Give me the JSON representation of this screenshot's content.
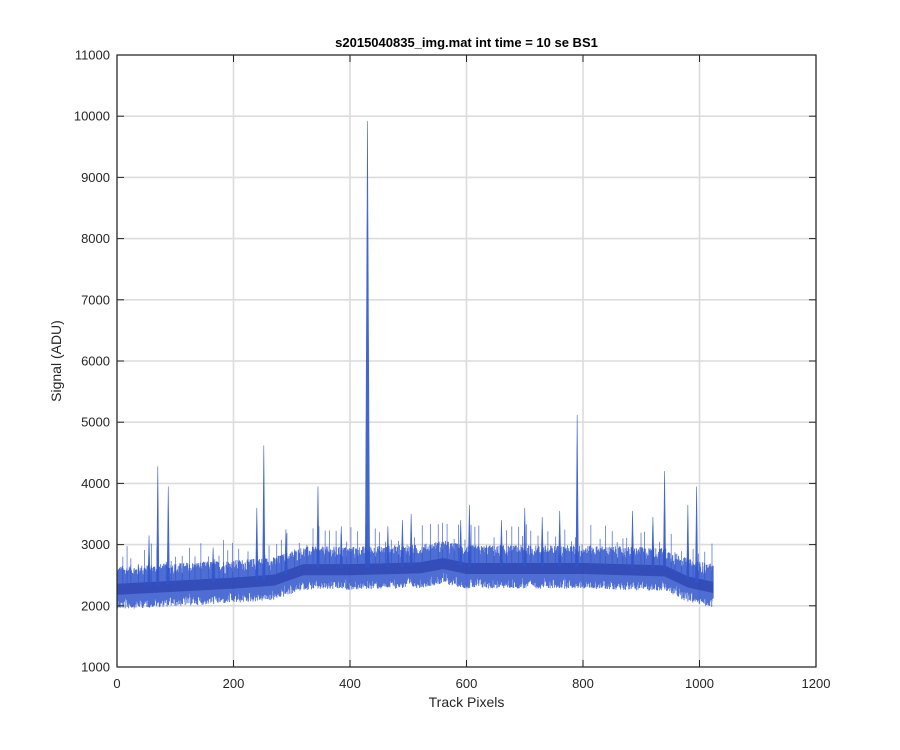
{
  "chart_data": {
    "type": "line",
    "title": "s2015040835_img.mat int time = 10 se   BS1",
    "xlabel": "Track Pixels",
    "ylabel": "Signal (ADU)",
    "xlim": [
      0,
      1200
    ],
    "ylim": [
      1000,
      11000
    ],
    "x_ticks": [
      0,
      200,
      400,
      600,
      800,
      1000,
      1200
    ],
    "y_ticks": [
      1000,
      2000,
      3000,
      4000,
      5000,
      6000,
      7000,
      8000,
      9000,
      10000,
      11000
    ],
    "grid": true,
    "n_pixels": 1024,
    "series_color": "#2f55cc",
    "baseline_profile": [
      {
        "x": 0,
        "y": 2300
      },
      {
        "x": 100,
        "y": 2350
      },
      {
        "x": 200,
        "y": 2400
      },
      {
        "x": 270,
        "y": 2450
      },
      {
        "x": 320,
        "y": 2620
      },
      {
        "x": 400,
        "y": 2620
      },
      {
        "x": 520,
        "y": 2650
      },
      {
        "x": 560,
        "y": 2720
      },
      {
        "x": 600,
        "y": 2640
      },
      {
        "x": 800,
        "y": 2640
      },
      {
        "x": 940,
        "y": 2600
      },
      {
        "x": 980,
        "y": 2420
      },
      {
        "x": 1024,
        "y": 2330
      }
    ],
    "spikes": [
      {
        "x": 70,
        "y": 4280
      },
      {
        "x": 88,
        "y": 3950
      },
      {
        "x": 55,
        "y": 3150
      },
      {
        "x": 165,
        "y": 2950
      },
      {
        "x": 240,
        "y": 3600
      },
      {
        "x": 252,
        "y": 4620
      },
      {
        "x": 290,
        "y": 3250
      },
      {
        "x": 345,
        "y": 3950
      },
      {
        "x": 385,
        "y": 3300
      },
      {
        "x": 430,
        "y": 9920
      },
      {
        "x": 465,
        "y": 3300
      },
      {
        "x": 490,
        "y": 3400
      },
      {
        "x": 505,
        "y": 3500
      },
      {
        "x": 590,
        "y": 3400
      },
      {
        "x": 605,
        "y": 3650
      },
      {
        "x": 660,
        "y": 3400
      },
      {
        "x": 700,
        "y": 3600
      },
      {
        "x": 730,
        "y": 3450
      },
      {
        "x": 760,
        "y": 3550
      },
      {
        "x": 790,
        "y": 5120
      },
      {
        "x": 885,
        "y": 3550
      },
      {
        "x": 920,
        "y": 3450
      },
      {
        "x": 940,
        "y": 4200
      },
      {
        "x": 980,
        "y": 3650
      },
      {
        "x": 995,
        "y": 3950
      }
    ]
  }
}
